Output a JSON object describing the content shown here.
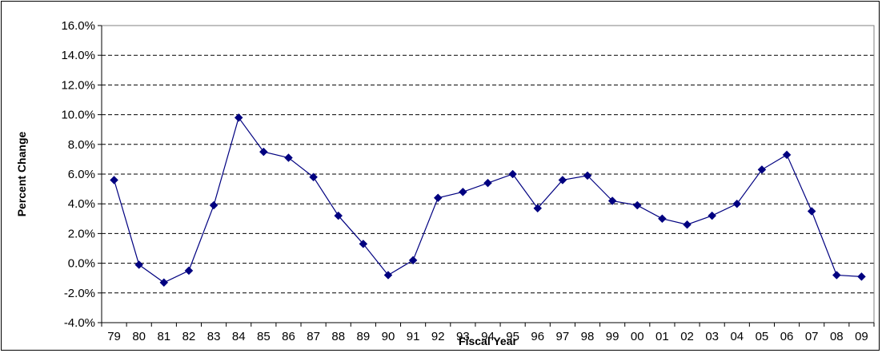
{
  "chart_data": {
    "type": "line",
    "title": "",
    "xlabel": "Fiscal Year",
    "ylabel": "Percent Change",
    "ylim": [
      -4,
      16
    ],
    "y_step": 2,
    "y_tick_suffix": "%",
    "grid": "horizontal dashed",
    "categories": [
      "79",
      "80",
      "81",
      "82",
      "83",
      "84",
      "85",
      "86",
      "87",
      "88",
      "89",
      "90",
      "91",
      "92",
      "93",
      "94",
      "95",
      "96",
      "97",
      "98",
      "99",
      "00",
      "01",
      "02",
      "03",
      "04",
      "05",
      "06",
      "07",
      "08",
      "09"
    ],
    "series": [
      {
        "values": [
          5.6,
          -0.1,
          -1.3,
          -0.5,
          3.9,
          9.8,
          7.5,
          7.1,
          5.8,
          3.2,
          1.3,
          -0.8,
          0.2,
          4.4,
          4.8,
          5.4,
          6.0,
          3.7,
          5.6,
          5.9,
          4.2,
          3.9,
          3.0,
          2.6,
          3.2,
          4.0,
          6.3,
          7.3,
          3.5,
          -0.8,
          -0.9
        ],
        "color": "#000080"
      }
    ]
  }
}
